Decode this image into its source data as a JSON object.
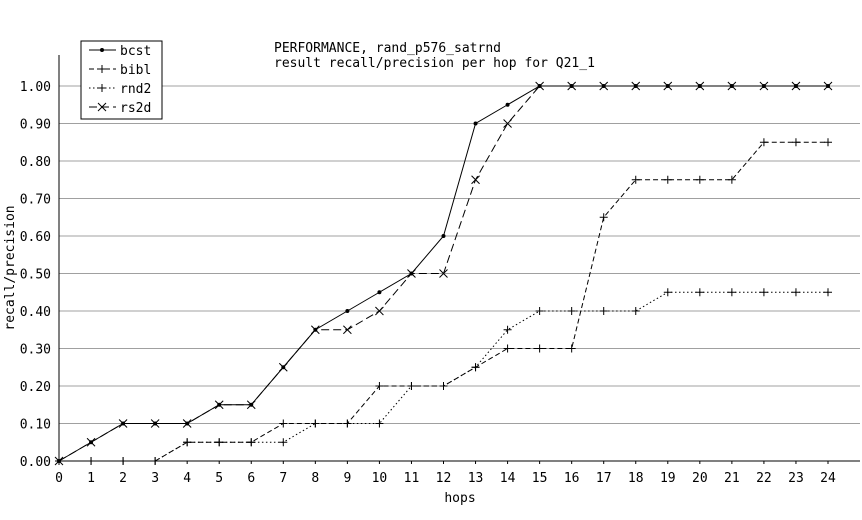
{
  "chart_data": {
    "type": "line",
    "title": "PERFORMANCE, rand_p576_satrnd",
    "subtitle": "result recall/precision per hop for Q21_1",
    "xlabel": "hops",
    "ylabel": "recall/precision",
    "xlim": [
      0,
      24
    ],
    "ylim": [
      0,
      1.0
    ],
    "grid": true,
    "legend_position": "top-left",
    "x": [
      0,
      1,
      2,
      3,
      4,
      5,
      6,
      7,
      8,
      9,
      10,
      11,
      12,
      13,
      14,
      15,
      16,
      17,
      18,
      19,
      20,
      21,
      22,
      23,
      24
    ],
    "x_ticks": [
      "0",
      "1",
      "2",
      "3",
      "4",
      "5",
      "6",
      "7",
      "8",
      "9",
      "10",
      "11",
      "12",
      "13",
      "14",
      "15",
      "16",
      "17",
      "18",
      "19",
      "20",
      "21",
      "22",
      "23",
      "24"
    ],
    "y_ticks": [
      "0.00",
      "0.10",
      "0.20",
      "0.30",
      "0.40",
      "0.50",
      "0.60",
      "0.70",
      "0.80",
      "0.90",
      "1.00"
    ],
    "series": [
      {
        "name": "bcst",
        "line_style": "solid",
        "marker": "dot",
        "values": [
          0,
          0.05,
          0.1,
          0.1,
          0.1,
          0.15,
          0.15,
          0.25,
          0.35,
          0.4,
          0.45,
          0.5,
          0.6,
          0.9,
          0.95,
          1.0,
          1.0,
          1.0,
          1.0,
          1.0,
          1.0,
          1.0,
          1.0,
          1.0,
          1.0
        ]
      },
      {
        "name": "bibl",
        "line_style": "dashed",
        "marker": "plus",
        "values": [
          0,
          0,
          0,
          0,
          0.05,
          0.05,
          0.05,
          0.1,
          0.1,
          0.1,
          0.2,
          0.2,
          0.2,
          0.25,
          0.3,
          0.3,
          0.3,
          0.65,
          0.75,
          0.75,
          0.75,
          0.75,
          0.85,
          0.85,
          0.85
        ]
      },
      {
        "name": "rnd2",
        "line_style": "dotted",
        "marker": "plus",
        "values": [
          0,
          0,
          0,
          0,
          0.05,
          0.05,
          0.05,
          0.05,
          0.1,
          0.1,
          0.1,
          0.2,
          0.2,
          0.25,
          0.35,
          0.4,
          0.4,
          0.4,
          0.4,
          0.45,
          0.45,
          0.45,
          0.45,
          0.45,
          0.45
        ]
      },
      {
        "name": "rs2d",
        "line_style": "longdash",
        "marker": "cross",
        "values": [
          0,
          0.05,
          0.1,
          0.1,
          0.1,
          0.15,
          0.15,
          0.25,
          0.35,
          0.35,
          0.4,
          0.5,
          0.5,
          0.75,
          0.9,
          1.0,
          1.0,
          1.0,
          1.0,
          1.0,
          1.0,
          1.0,
          1.0,
          1.0,
          1.0
        ]
      }
    ]
  }
}
